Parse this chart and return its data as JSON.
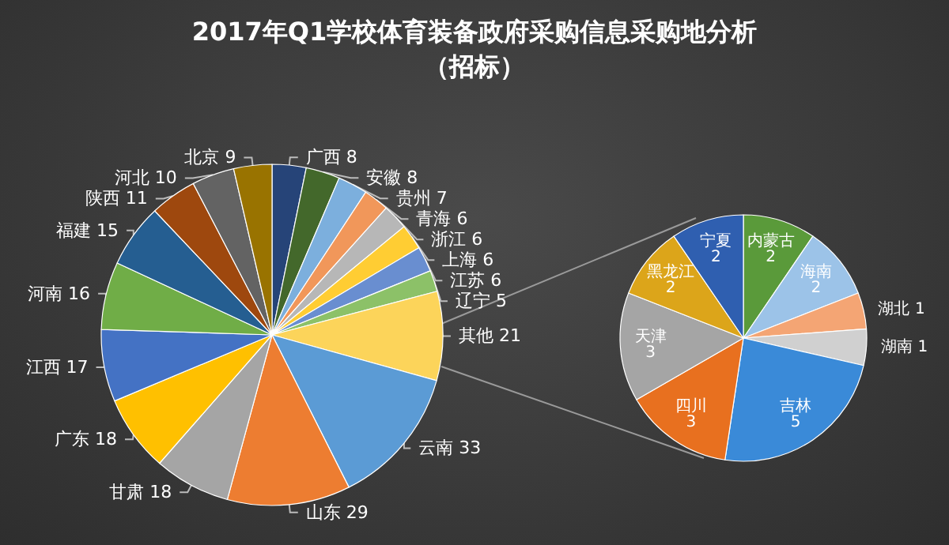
{
  "chart_data": [
    {
      "type": "pie",
      "title": "2017年Q1学校体育装备政府采购信息采购地分析（招标）",
      "data_labels": true,
      "categories": [
        "广西",
        "安徽",
        "贵州",
        "青海",
        "浙江",
        "上海",
        "江苏",
        "辽宁",
        "其他",
        "云南",
        "山东",
        "甘肃",
        "广东",
        "江西",
        "河南",
        "福建",
        "陕西",
        "河北",
        "北京"
      ],
      "values": [
        8,
        8,
        7,
        6,
        6,
        6,
        6,
        5,
        21,
        33,
        29,
        18,
        18,
        17,
        16,
        15,
        11,
        10,
        9
      ],
      "colors": [
        "#264478",
        "#43682b",
        "#7cafdd",
        "#f1975a",
        "#b7b7b7",
        "#ffcd33",
        "#698ed0",
        "#8cc168",
        "#fcd45a",
        "#5b9bd5",
        "#ed7d31",
        "#a5a5a5",
        "#ffc000",
        "#4472c4",
        "#70ad47",
        "#255e91",
        "#9e480e",
        "#636363",
        "#997300"
      ]
    },
    {
      "type": "pie",
      "data_labels": true,
      "categories": [
        "内蒙古",
        "海南",
        "湖北",
        "湖南",
        "吉林",
        "四川",
        "天津",
        "黑龙江",
        "宁夏"
      ],
      "values": [
        2,
        2,
        1,
        1,
        5,
        3,
        3,
        2,
        2
      ],
      "colors": [
        "#5a9a3a",
        "#9cc3e8",
        "#f4a574",
        "#d0d0d0",
        "#3a8ad8",
        "#e8701f",
        "#a5a5a5",
        "#dca51a",
        "#2f5fb0"
      ]
    }
  ]
}
